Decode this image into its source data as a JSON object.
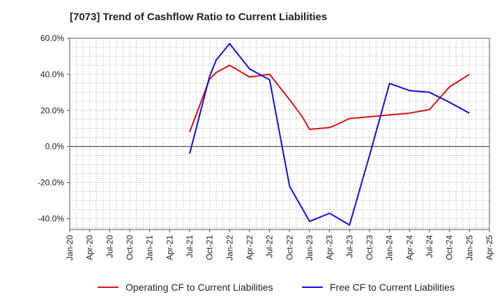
{
  "colors": {
    "operating": "#e01010",
    "free": "#1010e0",
    "grid": "#b0b0b0",
    "axis": "#555555"
  },
  "chart_data": {
    "type": "line",
    "title": "[7073]  Trend of Cashflow Ratio to Current Liabilities",
    "xlabel": "",
    "ylabel": "",
    "x_ticks": [
      "Jan-20",
      "Apr-20",
      "Jul-20",
      "Oct-20",
      "Jan-21",
      "Apr-21",
      "Jul-21",
      "Oct-21",
      "Jan-22",
      "Apr-22",
      "Jul-22",
      "Oct-22",
      "Jan-23",
      "Apr-23",
      "Jul-23",
      "Oct-23",
      "Jan-24",
      "Apr-24",
      "Jul-24",
      "Oct-24",
      "Jan-25",
      "Apr-25"
    ],
    "y_ticks": [
      60,
      40,
      20,
      0,
      -20,
      -40
    ],
    "y_tick_labels": [
      "60.0%",
      "40.0%",
      "20.0%",
      "0.0%",
      "-20.0%",
      "-40.0%"
    ],
    "ylim": [
      -46,
      60
    ],
    "grid": true,
    "legend_position": "bottom",
    "series": [
      {
        "name": "Operating CF to Current Liabilities",
        "color_key": "operating",
        "x": [
          "Jul-21",
          "Oct-21",
          "Nov-21",
          "Jan-22",
          "Apr-22",
          "Jul-22",
          "Oct-22",
          "Dec-22",
          "Jan-23",
          "Apr-23",
          "May-23",
          "Jul-23",
          "Oct-23",
          "Jan-24",
          "Apr-24",
          "Jul-24",
          "Oct-24",
          "Jan-25"
        ],
        "values": [
          8,
          37.5,
          41,
          45,
          38.5,
          40,
          26,
          16,
          9.5,
          10.5,
          12,
          15.5,
          16.5,
          17.5,
          18.5,
          20.5,
          33,
          40
        ]
      },
      {
        "name": "Free CF to Current Liabilities",
        "color_key": "free",
        "x": [
          "Jul-21",
          "Oct-21",
          "Nov-21",
          "Jan-22",
          "Apr-22",
          "Jul-22",
          "Oct-22",
          "Jan-23",
          "Apr-23",
          "Jul-23",
          "Oct-23",
          "Jan-24",
          "Apr-24",
          "Jul-24",
          "Oct-24",
          "Jan-25"
        ],
        "values": [
          -4,
          39,
          48,
          57,
          43,
          37,
          -22,
          -41.5,
          -37,
          -43.5,
          -5,
          35,
          31,
          30,
          24.5,
          18.5
        ]
      }
    ]
  }
}
